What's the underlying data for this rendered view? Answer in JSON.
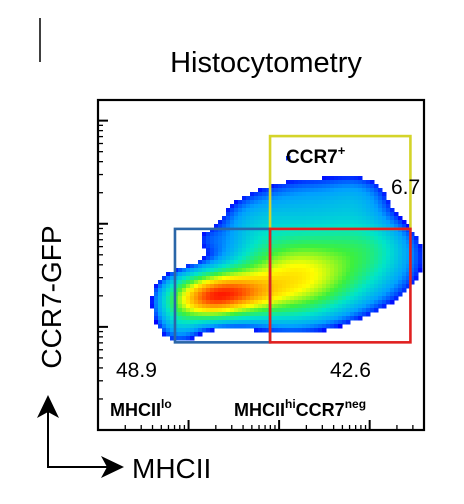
{
  "chart_data": {
    "type": "heatmap",
    "title": "Histocytometry",
    "xlabel": "MHCII",
    "ylabel": "CCR7-GFP",
    "x_scale": "log",
    "y_scale": "log",
    "grid": false,
    "legend": "none",
    "xlim": [
      0,
      3.6
    ],
    "ylim": [
      0,
      3.2
    ],
    "x_major_ticks": [
      1,
      2,
      3
    ],
    "y_major_ticks": [
      1,
      2,
      3
    ],
    "gates": [
      {
        "name": "CCR7+",
        "name_main": "CCR7",
        "name_sup": "+",
        "value": "6.7",
        "color": "#d4d42a",
        "x0": 1.9,
        "x1": 3.45,
        "y0": 1.95,
        "y1": 2.85,
        "value_position": "outside-right-top"
      },
      {
        "name": "MHCIIlo",
        "name_main": "MHCII",
        "name_sup": "lo",
        "value": "48.9",
        "color": "#2a66a8",
        "x0": 0.85,
        "x1": 1.9,
        "y0": 0.85,
        "y1": 1.95,
        "value_position": "outside-left-bottom"
      },
      {
        "name": "MHCIIhiCCR7neg",
        "parts": [
          "MHCII",
          "hi",
          "CCR7",
          "neg"
        ],
        "value": "42.6",
        "color": "#e02020",
        "x0": 1.9,
        "x1": 3.45,
        "y0": 0.85,
        "y1": 1.95,
        "value_position": "inside-right-bottom"
      }
    ],
    "density_colormap": [
      "#0000ff",
      "#00a0ff",
      "#00e5c8",
      "#3df03d",
      "#ffff00",
      "#ff9a00",
      "#ff1a00"
    ],
    "density_blobs": [
      {
        "x": 0.9,
        "y": 1.15,
        "sx": 0.18,
        "sy": 0.2,
        "w": 0.25
      },
      {
        "x": 1.45,
        "y": 1.33,
        "sx": 0.32,
        "sy": 0.13,
        "w": 1.0
      },
      {
        "x": 1.2,
        "y": 1.25,
        "sx": 0.22,
        "sy": 0.12,
        "w": 0.55
      },
      {
        "x": 2.1,
        "y": 1.45,
        "sx": 0.42,
        "sy": 0.25,
        "w": 0.6
      },
      {
        "x": 2.6,
        "y": 1.6,
        "sx": 0.55,
        "sy": 0.28,
        "w": 0.35
      },
      {
        "x": 3.0,
        "y": 1.8,
        "sx": 0.3,
        "sy": 0.18,
        "w": 0.15
      },
      {
        "x": 2.3,
        "y": 2.2,
        "sx": 0.45,
        "sy": 0.22,
        "w": 0.14
      },
      {
        "x": 2.9,
        "y": 2.25,
        "sx": 0.25,
        "sy": 0.18,
        "w": 0.1
      },
      {
        "x": 1.7,
        "y": 2.0,
        "sx": 0.28,
        "sy": 0.18,
        "w": 0.12
      },
      {
        "x": 1.2,
        "y": 1.85,
        "sx": 0.15,
        "sy": 0.1,
        "w": 0.06
      },
      {
        "x": 2.1,
        "y": 2.65,
        "sx": 0.04,
        "sy": 0.04,
        "w": 0.08
      }
    ]
  }
}
